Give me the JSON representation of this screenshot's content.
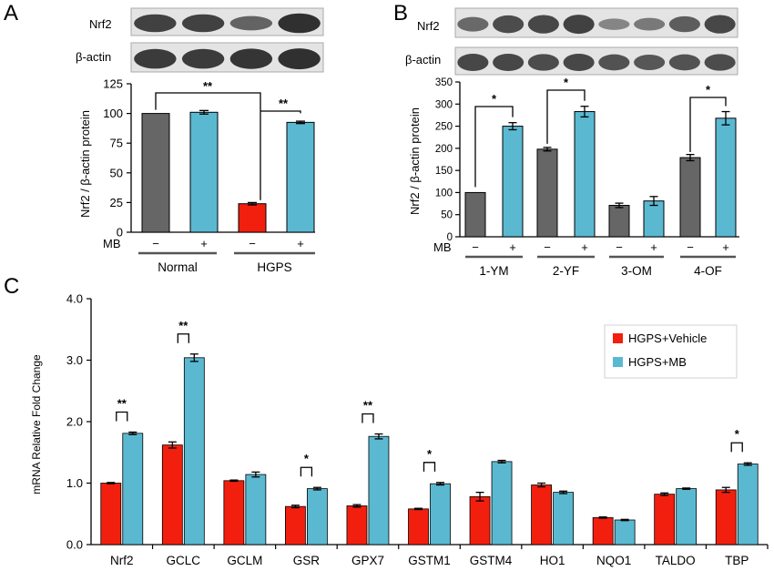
{
  "colors": {
    "grey": "#666666",
    "cyan": "#5ab9d1",
    "red": "#f21f0e",
    "blot_bg": "#e4e4e4",
    "band": "#262626"
  },
  "panels": {
    "A": {
      "letter": "A",
      "blot_labels": [
        "Nrf2",
        "β-actin"
      ],
      "ylabel": "Nrf2 / β-actin protein",
      "mb_label": "MB",
      "treatments": [
        "−",
        "+",
        "−",
        "+"
      ],
      "groups": [
        "Normal",
        "HGPS"
      ],
      "significance": [
        "**",
        "**"
      ]
    },
    "B": {
      "letter": "B",
      "blot_labels": [
        "Nrf2",
        "β-actin"
      ],
      "ylabel": "Nrf2 / β-actin protein",
      "mb_label": "MB",
      "treatments": [
        "−",
        "+",
        "−",
        "+",
        "−",
        "+",
        "−",
        "+"
      ],
      "groups": [
        "1-YM",
        "2-YF",
        "3-OM",
        "4-OF"
      ],
      "significance": [
        "*",
        "*",
        "*"
      ]
    },
    "C": {
      "letter": "C",
      "ylabel": "mRNA Relative Fold Change",
      "legend": [
        "HGPS+Vehicle",
        "HGPS+MB"
      ],
      "significance": [
        "**",
        "**",
        "*",
        "**",
        "*",
        "*"
      ]
    }
  },
  "chart_data": [
    {
      "panel": "A",
      "type": "bar",
      "categories": [
        "Normal −",
        "Normal +",
        "HGPS −",
        "HGPS +"
      ],
      "values": [
        100,
        101,
        24,
        92.5
      ],
      "errors": [
        0,
        1.5,
        1,
        1
      ],
      "bar_colors": [
        "grey",
        "cyan",
        "red",
        "cyan"
      ],
      "ylabel": "Nrf2 / β-actin protein",
      "ylim": [
        0,
        125
      ],
      "yticks": [
        0,
        25,
        50,
        75,
        100,
        125
      ]
    },
    {
      "panel": "B",
      "type": "bar",
      "categories": [
        "1-YM −",
        "1-YM +",
        "2-YF −",
        "2-YF +",
        "3-OM −",
        "3-OM +",
        "4-OF −",
        "4-OF +"
      ],
      "values": [
        100,
        250,
        198,
        283,
        71,
        81,
        179,
        268
      ],
      "errors": [
        0,
        8,
        4,
        12,
        5,
        10,
        7,
        15
      ],
      "bar_colors": [
        "grey",
        "cyan",
        "grey",
        "cyan",
        "grey",
        "cyan",
        "grey",
        "cyan"
      ],
      "ylabel": "Nrf2 / β-actin protein",
      "ylim": [
        0,
        350
      ],
      "yticks": [
        0,
        50,
        100,
        150,
        200,
        250,
        300,
        350
      ]
    },
    {
      "panel": "C",
      "type": "bar",
      "categories": [
        "Nrf2",
        "GCLC",
        "GCLM",
        "GSR",
        "GPX7",
        "GSTM1",
        "GSTM4",
        "HO1",
        "NQO1",
        "TALDO",
        "TBP"
      ],
      "series": [
        {
          "name": "HGPS+Vehicle",
          "values": [
            1.0,
            1.62,
            1.04,
            0.62,
            0.63,
            0.58,
            0.78,
            0.97,
            0.44,
            0.82,
            0.89
          ],
          "errors": [
            0.01,
            0.05,
            0.01,
            0.02,
            0.02,
            0.01,
            0.07,
            0.03,
            0.01,
            0.02,
            0.04
          ]
        },
        {
          "name": "HGPS+MB",
          "values": [
            1.81,
            3.04,
            1.14,
            0.91,
            1.76,
            0.99,
            1.35,
            0.85,
            0.4,
            0.91,
            1.31
          ],
          "errors": [
            0.02,
            0.06,
            0.04,
            0.02,
            0.04,
            0.02,
            0.02,
            0.02,
            0.01,
            0.01,
            0.02
          ]
        }
      ],
      "ylabel": "mRNA Relative Fold Change",
      "ylim": [
        0,
        4.0
      ],
      "yticks": [
        "0.0",
        "1.0",
        "2.0",
        "3.0",
        "4.0"
      ],
      "legend_position": "top-right"
    }
  ]
}
